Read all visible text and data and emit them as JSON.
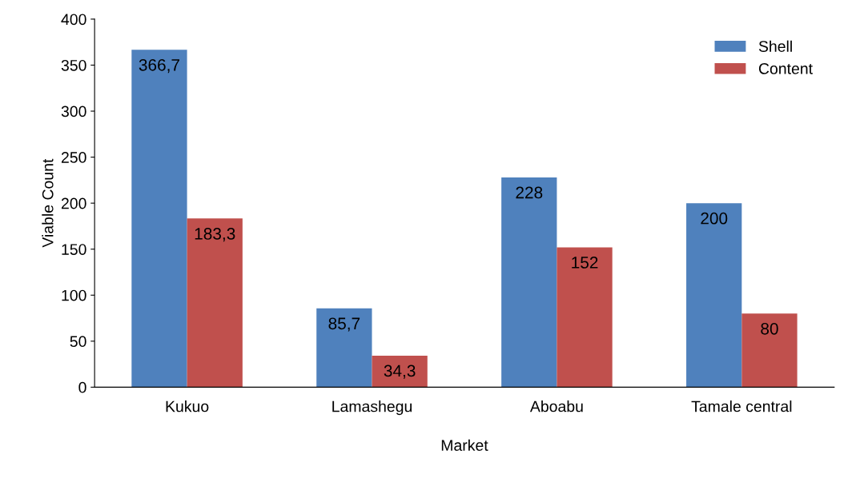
{
  "chart_data": {
    "type": "bar",
    "xlabel": "Market",
    "ylabel": "Viable Count",
    "categories": [
      "Kukuo",
      "Lamashegu",
      "Aboabu",
      "Tamale central"
    ],
    "series": [
      {
        "name": "Shell",
        "color": "#4f81bd",
        "values": [
          366.7,
          85.7,
          228,
          200
        ],
        "value_labels": [
          "366,7",
          "85,7",
          "228",
          "200"
        ]
      },
      {
        "name": "Content",
        "color": "#c0504d",
        "values": [
          183.3,
          34.3,
          152,
          80
        ],
        "value_labels": [
          "183,3",
          "34,3",
          "152",
          "80"
        ]
      }
    ],
    "ylim": [
      0,
      400
    ],
    "yticks": [
      0,
      50,
      100,
      150,
      200,
      250,
      300,
      350,
      400
    ],
    "grid": false,
    "legend": "top right"
  }
}
